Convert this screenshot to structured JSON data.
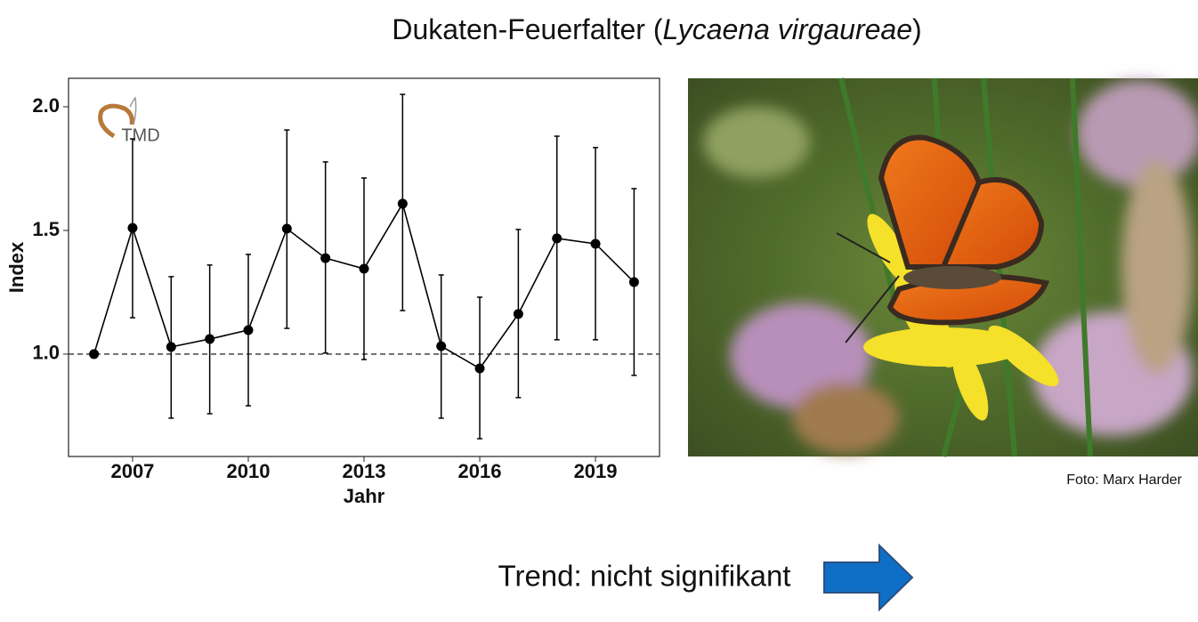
{
  "slide": {
    "title_parts": [
      "Dukaten-Feuerfalter (",
      "Lycaena virgaureae",
      ")"
    ],
    "photo_credit": "Foto: Marx Harder",
    "trend": "Trend: nicht signifikant",
    "logo": "TMD"
  },
  "chart_data": {
    "type": "errorline",
    "xlabel": "Jahr",
    "ylabel": "Index",
    "color": "#000000",
    "x": [
      2006,
      2007,
      2008,
      2009,
      2010,
      2011,
      2012,
      2013,
      2014,
      2015,
      2016,
      2017,
      2018,
      2019,
      2020
    ],
    "values": [
      1.0,
      1.51,
      1.029,
      1.061,
      1.097,
      1.507,
      1.388,
      1.345,
      1.608,
      1.032,
      0.942,
      1.162,
      1.468,
      1.446,
      1.291
    ],
    "lower": [
      null,
      1.147,
      0.741,
      0.759,
      0.791,
      1.104,
      1.004,
      0.978,
      1.176,
      0.741,
      0.658,
      0.824,
      1.058,
      1.058,
      0.914
    ],
    "upper": [
      null,
      1.87,
      1.313,
      1.36,
      1.403,
      1.906,
      1.777,
      1.712,
      2.05,
      1.32,
      1.23,
      1.504,
      1.881,
      1.835,
      1.669
    ],
    "xlim": [
      2005.34,
      2020.66
    ],
    "ylim": [
      0.586,
      2.115
    ],
    "xticks": [
      2007,
      2010,
      2013,
      2016,
      2019
    ],
    "yticks": [
      {
        "value": 1,
        "label": "1.0"
      },
      {
        "value": 1.5,
        "label": "1.5"
      },
      {
        "value": 2,
        "label": "2.0"
      }
    ],
    "reference_line": 1
  }
}
